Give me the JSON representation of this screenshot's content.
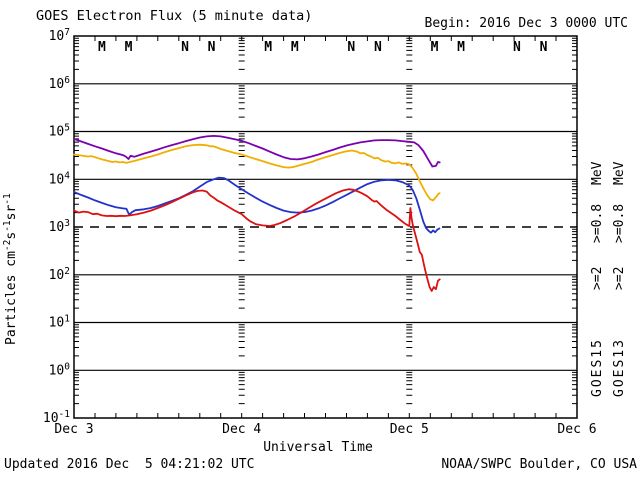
{
  "header": {
    "title": "GOES Electron Flux (5 minute data)",
    "begin_label": "Begin: 2016 Dec 3 0000 UTC"
  },
  "footer": {
    "updated": "Updated 2016 Dec  5 04:21:02 UTC",
    "source": "NOAA/SWPC Boulder, CO USA"
  },
  "chart_data": {
    "type": "line",
    "title": "GOES Electron Flux (5 minute data)",
    "xlabel": "Universal Time",
    "ylabel_main": "Particles cm",
    "ylabel_parts": [
      [
        "Particles cm",
        0
      ],
      [
        "-2",
        1
      ],
      [
        "s",
        0
      ],
      [
        "-1",
        1
      ],
      [
        "sr",
        0
      ],
      [
        "-1",
        1
      ]
    ],
    "x_range_hours": [
      0,
      72
    ],
    "y_log_range": [
      -1,
      7
    ],
    "x_ticks": [
      {
        "t": 0,
        "label": "Dec 3"
      },
      {
        "t": 24,
        "label": "Dec 4"
      },
      {
        "t": 48,
        "label": "Dec 5"
      },
      {
        "t": 72,
        "label": "Dec 6"
      }
    ],
    "day_boundaries_hours": [
      24,
      48
    ],
    "threshold": {
      "value": 1000,
      "style": "dashed"
    },
    "markers": [
      {
        "label": "M",
        "meaning": "satellite-local-midnight",
        "color": "#dd1111",
        "hours": [
          4.0,
          27.8,
          51.6
        ]
      },
      {
        "label": "M",
        "meaning": "satellite-local-midnight",
        "color": "#2233cc",
        "hours": [
          7.8,
          31.6,
          55.4
        ]
      },
      {
        "label": "N",
        "meaning": "satellite-local-noon",
        "color": "#dd1111",
        "hours": [
          15.9,
          39.7,
          63.4
        ]
      },
      {
        "label": "N",
        "meaning": "satellite-local-noon",
        "color": "#2233cc",
        "hours": [
          19.7,
          43.5,
          67.2
        ]
      }
    ],
    "right_legend": {
      "columns": [
        {
          "sat": "GOES15",
          "ge2": {
            "label": ">=2",
            "color": "#2233cc"
          },
          "ge08": {
            "label": ">=0.8",
            "color": "#7a00b0"
          },
          "mev": "MeV"
        },
        {
          "sat": "GOES13",
          "ge2": {
            "label": ">=2",
            "color": "#dd1111"
          },
          "ge08": {
            "label": ">=0.8",
            "color": "#f0af00"
          },
          "mev": "MeV"
        }
      ]
    },
    "series": [
      {
        "id": "goes15-e08",
        "name": "GOES15 >=0.8 MeV",
        "color": "#7a00b0",
        "points": [
          [
            0,
            70000
          ],
          [
            1,
            62000
          ],
          [
            2,
            55000
          ],
          [
            3,
            49000
          ],
          [
            4,
            44000
          ],
          [
            5,
            39000
          ],
          [
            6,
            35000
          ],
          [
            7,
            32000
          ],
          [
            7.4,
            30000
          ],
          [
            7.8,
            26500
          ],
          [
            8.1,
            31000
          ],
          [
            8.6,
            29500
          ],
          [
            9.2,
            31500
          ],
          [
            10,
            34500
          ],
          [
            11,
            38000
          ],
          [
            12,
            42000
          ],
          [
            13,
            47000
          ],
          [
            14,
            52000
          ],
          [
            15,
            57000
          ],
          [
            16,
            63000
          ],
          [
            17,
            69000
          ],
          [
            18,
            75000
          ],
          [
            19,
            79000
          ],
          [
            20,
            81000
          ],
          [
            21,
            79000
          ],
          [
            22,
            74000
          ],
          [
            23,
            69000
          ],
          [
            24,
            64000
          ],
          [
            25,
            57000
          ],
          [
            26,
            50000
          ],
          [
            27,
            44000
          ],
          [
            28,
            38000
          ],
          [
            29,
            33000
          ],
          [
            30,
            29000
          ],
          [
            31,
            26500
          ],
          [
            32,
            26000
          ],
          [
            33,
            27500
          ],
          [
            34,
            30000
          ],
          [
            35,
            33000
          ],
          [
            36,
            37000
          ],
          [
            37,
            41000
          ],
          [
            38,
            46000
          ],
          [
            39,
            51000
          ],
          [
            40,
            55000
          ],
          [
            41,
            59000
          ],
          [
            42,
            62000
          ],
          [
            43,
            65000
          ],
          [
            44,
            66000
          ],
          [
            45,
            66000
          ],
          [
            46,
            65000
          ],
          [
            47,
            63000
          ],
          [
            48,
            61000
          ],
          [
            48.7,
            59000
          ],
          [
            49.3,
            52000
          ],
          [
            50,
            39000
          ],
          [
            50.7,
            26000
          ],
          [
            51.3,
            18500
          ],
          [
            51.8,
            19000
          ],
          [
            52.1,
            23000
          ],
          [
            52.35,
            22500
          ]
        ]
      },
      {
        "id": "goes13-e08",
        "name": "GOES13 >=0.8 MeV",
        "color": "#f0af00",
        "points": [
          [
            0,
            33000
          ],
          [
            1,
            31500
          ],
          [
            2,
            30000
          ],
          [
            2.5,
            30500
          ],
          [
            3,
            29000
          ],
          [
            4,
            26000
          ],
          [
            5,
            24000
          ],
          [
            5.5,
            23000
          ],
          [
            6,
            23500
          ],
          [
            6.5,
            22500
          ],
          [
            7,
            23000
          ],
          [
            7.5,
            22000
          ],
          [
            8,
            23000
          ],
          [
            9,
            25000
          ],
          [
            10,
            27500
          ],
          [
            11,
            30000
          ],
          [
            12,
            33000
          ],
          [
            13,
            37000
          ],
          [
            14,
            41000
          ],
          [
            15,
            45000
          ],
          [
            16,
            49000
          ],
          [
            17,
            52000
          ],
          [
            18,
            53000
          ],
          [
            19,
            51500
          ],
          [
            19.5,
            49000
          ],
          [
            20,
            49000
          ],
          [
            20.5,
            46000
          ],
          [
            21,
            43000
          ],
          [
            22,
            39000
          ],
          [
            23,
            35500
          ],
          [
            24,
            33000
          ],
          [
            25,
            29500
          ],
          [
            26,
            26500
          ],
          [
            27,
            24000
          ],
          [
            28,
            21500
          ],
          [
            29,
            19500
          ],
          [
            30,
            18000
          ],
          [
            30.7,
            17500
          ],
          [
            31.3,
            18000
          ],
          [
            32,
            19000
          ],
          [
            33,
            21000
          ],
          [
            34,
            23000
          ],
          [
            35,
            26000
          ],
          [
            36,
            29000
          ],
          [
            37,
            32000
          ],
          [
            38,
            35500
          ],
          [
            39,
            38500
          ],
          [
            39.8,
            40000
          ],
          [
            40.5,
            38000
          ],
          [
            41,
            35000
          ],
          [
            41.5,
            35500
          ],
          [
            42,
            32000
          ],
          [
            42.5,
            30000
          ],
          [
            43,
            27500
          ],
          [
            43.5,
            28000
          ],
          [
            44,
            25000
          ],
          [
            44.5,
            23500
          ],
          [
            45,
            24000
          ],
          [
            45.5,
            22000
          ],
          [
            46,
            21500
          ],
          [
            46.5,
            22500
          ],
          [
            47,
            21000
          ],
          [
            47.5,
            21500
          ],
          [
            48,
            20500
          ],
          [
            48.5,
            17000
          ],
          [
            49,
            13000
          ],
          [
            49.5,
            9000
          ],
          [
            50,
            6500
          ],
          [
            50.5,
            4800
          ],
          [
            51,
            3800
          ],
          [
            51.4,
            3600
          ],
          [
            51.8,
            4200
          ],
          [
            52.2,
            5000
          ],
          [
            52.35,
            5100
          ]
        ]
      },
      {
        "id": "goes15-e2",
        "name": "GOES15 >=2 MeV",
        "color": "#2233cc",
        "points": [
          [
            0,
            5400
          ],
          [
            1,
            4700
          ],
          [
            2,
            4150
          ],
          [
            3,
            3600
          ],
          [
            4,
            3200
          ],
          [
            5,
            2850
          ],
          [
            6,
            2600
          ],
          [
            7,
            2450
          ],
          [
            7.5,
            2400
          ],
          [
            7.9,
            1800
          ],
          [
            8.3,
            2050
          ],
          [
            8.8,
            2250
          ],
          [
            9.5,
            2300
          ],
          [
            10,
            2350
          ],
          [
            11,
            2500
          ],
          [
            12,
            2750
          ],
          [
            13,
            3100
          ],
          [
            14,
            3500
          ],
          [
            15,
            4000
          ],
          [
            16,
            4700
          ],
          [
            17,
            5600
          ],
          [
            18,
            7000
          ],
          [
            19,
            8700
          ],
          [
            20,
            10000
          ],
          [
            20.7,
            10800
          ],
          [
            21.5,
            10500
          ],
          [
            22,
            9700
          ],
          [
            23,
            7700
          ],
          [
            24,
            6200
          ],
          [
            25,
            5000
          ],
          [
            26,
            4100
          ],
          [
            27,
            3400
          ],
          [
            28,
            2900
          ],
          [
            29,
            2500
          ],
          [
            30,
            2200
          ],
          [
            31,
            2050
          ],
          [
            32,
            2000
          ],
          [
            33,
            2050
          ],
          [
            34,
            2200
          ],
          [
            35,
            2450
          ],
          [
            36,
            2800
          ],
          [
            37,
            3300
          ],
          [
            38,
            3950
          ],
          [
            39,
            4700
          ],
          [
            40,
            5600
          ],
          [
            41,
            6700
          ],
          [
            42,
            7900
          ],
          [
            43,
            8900
          ],
          [
            44,
            9500
          ],
          [
            45,
            9700
          ],
          [
            46,
            9500
          ],
          [
            47,
            8700
          ],
          [
            48,
            7400
          ],
          [
            48.5,
            5900
          ],
          [
            49,
            4000
          ],
          [
            49.5,
            2300
          ],
          [
            50,
            1300
          ],
          [
            50.4,
            950
          ],
          [
            50.8,
            820
          ],
          [
            51.1,
            760
          ],
          [
            51.4,
            850
          ],
          [
            51.7,
            780
          ],
          [
            52,
            880
          ],
          [
            52.3,
            930
          ]
        ]
      },
      {
        "id": "goes13-e2",
        "name": "GOES13 >=2 MeV",
        "color": "#dd1111",
        "points": [
          [
            0,
            2200
          ],
          [
            0.7,
            2000
          ],
          [
            1.3,
            2100
          ],
          [
            2,
            2050
          ],
          [
            2.7,
            1850
          ],
          [
            3.3,
            1900
          ],
          [
            4,
            1750
          ],
          [
            4.7,
            1700
          ],
          [
            5.3,
            1720
          ],
          [
            6,
            1680
          ],
          [
            6.7,
            1720
          ],
          [
            7.3,
            1700
          ],
          [
            8,
            1750
          ],
          [
            9,
            1850
          ],
          [
            10,
            2000
          ],
          [
            11,
            2200
          ],
          [
            12,
            2500
          ],
          [
            13,
            2850
          ],
          [
            14,
            3300
          ],
          [
            15,
            3900
          ],
          [
            16,
            4600
          ],
          [
            17,
            5300
          ],
          [
            17.7,
            5700
          ],
          [
            18.4,
            5800
          ],
          [
            19,
            5500
          ],
          [
            19.5,
            4600
          ],
          [
            20,
            4100
          ],
          [
            20.5,
            3600
          ],
          [
            21,
            3300
          ],
          [
            22,
            2700
          ],
          [
            23,
            2200
          ],
          [
            24,
            1850
          ],
          [
            24.7,
            1500
          ],
          [
            25.3,
            1300
          ],
          [
            26,
            1150
          ],
          [
            27,
            1080
          ],
          [
            28,
            1050
          ],
          [
            28.7,
            1100
          ],
          [
            29.5,
            1200
          ],
          [
            30.5,
            1400
          ],
          [
            31.5,
            1650
          ],
          [
            32.5,
            2000
          ],
          [
            33.5,
            2450
          ],
          [
            34.5,
            3000
          ],
          [
            35.5,
            3600
          ],
          [
            36.5,
            4300
          ],
          [
            37.5,
            5100
          ],
          [
            38.5,
            5800
          ],
          [
            39.3,
            6200
          ],
          [
            40,
            6000
          ],
          [
            40.7,
            5500
          ],
          [
            41.3,
            5000
          ],
          [
            42,
            4400
          ],
          [
            42.7,
            3600
          ],
          [
            43,
            3400
          ],
          [
            43.3,
            3500
          ],
          [
            44,
            2800
          ],
          [
            44.7,
            2300
          ],
          [
            45.3,
            2000
          ],
          [
            46,
            1700
          ],
          [
            46.7,
            1400
          ],
          [
            47.3,
            1200
          ],
          [
            47.8,
            1080
          ],
          [
            48,
            1050
          ],
          [
            48.15,
            2500
          ],
          [
            48.3,
            1600
          ],
          [
            48.5,
            1100
          ],
          [
            48.8,
            750
          ],
          [
            49.2,
            450
          ],
          [
            49.5,
            300
          ],
          [
            49.8,
            260
          ],
          [
            50.1,
            160
          ],
          [
            50.5,
            90
          ],
          [
            50.9,
            55
          ],
          [
            51.2,
            46
          ],
          [
            51.5,
            55
          ],
          [
            51.8,
            50
          ],
          [
            52.1,
            75
          ],
          [
            52.35,
            80
          ]
        ]
      }
    ],
    "legend_position": "right",
    "grid": "decade-lines"
  },
  "colors": {
    "axis": "#000000",
    "background": "#ffffff",
    "text": "#000000"
  }
}
